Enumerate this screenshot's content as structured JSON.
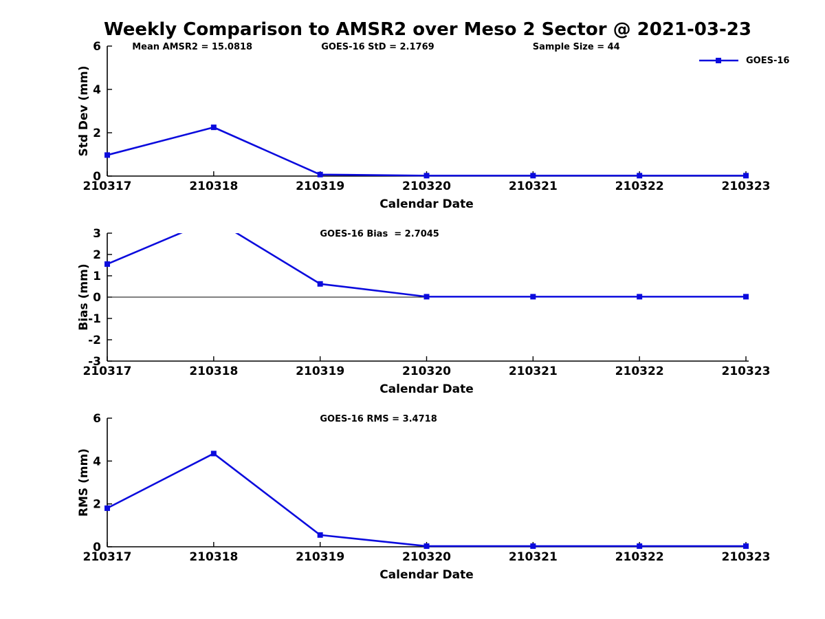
{
  "title": "Weekly Comparison to AMSR2 over Meso 2 Sector @ 2021-03-23",
  "legend": {
    "label": "GOES-16",
    "position": "top-right"
  },
  "colors": {
    "line": "#0b0bdd",
    "axis": "#000000",
    "text": "#000000"
  },
  "chart_data": {
    "type": "line",
    "series_name": "GOES-16",
    "x_label": "Calendar Date",
    "categories": [
      "210317",
      "210318",
      "210319",
      "210320",
      "210321",
      "210322",
      "210323"
    ],
    "grid": "off",
    "marker": "square",
    "subplots": [
      {
        "name": "std-dev",
        "ylabel": "Std Dev (mm)",
        "ylim": [
          0,
          6
        ],
        "yticks": [
          0,
          2,
          4,
          6
        ],
        "values": [
          0.97,
          2.25,
          0.07,
          0.02,
          0.02,
          0.02,
          0.02
        ],
        "zero_line": false,
        "annotations": [
          {
            "text": "Mean AMSR2 = 15.0818",
            "xfrac": 0.039
          },
          {
            "text": "GOES-16 StD = 2.1769",
            "xfrac": 0.335
          },
          {
            "text": "Sample Size = 44",
            "xfrac": 0.666
          }
        ]
      },
      {
        "name": "bias",
        "ylabel": "Bias (mm)",
        "ylim": [
          -3,
          3
        ],
        "yticks": [
          3,
          2,
          1,
          0,
          -1,
          -2,
          -3
        ],
        "values": [
          1.55,
          3.66,
          0.62,
          0.02,
          0.02,
          0.02,
          0.02
        ],
        "zero_line": true,
        "annotations": [
          {
            "text": "GOES-16 Bias  = 2.7045",
            "xfrac": 0.333
          }
        ]
      },
      {
        "name": "rms",
        "ylabel": "RMS (mm)",
        "ylim": [
          0,
          6
        ],
        "yticks": [
          0,
          2,
          4,
          6
        ],
        "values": [
          1.8,
          4.35,
          0.55,
          0.03,
          0.03,
          0.03,
          0.03
        ],
        "zero_line": false,
        "annotations": [
          {
            "text": "GOES-16 RMS = 3.4718",
            "xfrac": 0.333
          }
        ]
      }
    ]
  }
}
